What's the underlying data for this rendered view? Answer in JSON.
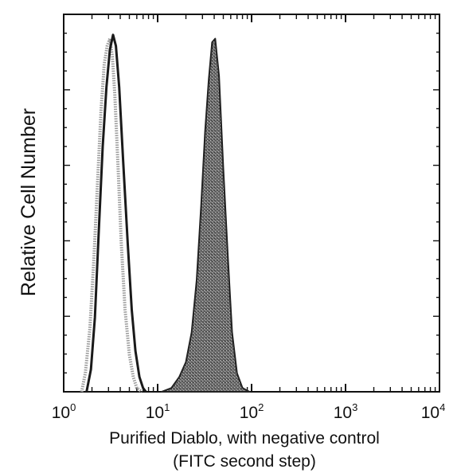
{
  "chart_data": {
    "type": "area",
    "title": "",
    "xlabel": "Purified Diablo, with negative control",
    "xlabel_line2": "(FITC second step)",
    "ylabel": "Relative Cell Number",
    "xscale": "log",
    "xlim": [
      1,
      10000
    ],
    "ylim": [
      0,
      1.0
    ],
    "grid": false,
    "x_ticks": [
      {
        "base": "10",
        "exp": "0",
        "value": 1
      },
      {
        "base": "10",
        "exp": "1",
        "value": 10
      },
      {
        "base": "10",
        "exp": "2",
        "value": 100
      },
      {
        "base": "10",
        "exp": "3",
        "value": 1000
      },
      {
        "base": "10",
        "exp": "4",
        "value": 10000
      }
    ],
    "series": [
      {
        "style": "dotted-outline",
        "color": "#9a9a9a",
        "x": [
          1.55,
          1.7,
          1.9,
          2.1,
          2.3,
          2.5,
          2.7,
          2.9,
          3.1,
          3.3,
          3.5,
          3.8,
          4.1,
          4.5,
          5.0,
          5.5,
          6.0,
          6.8
        ],
        "y": [
          0.0,
          0.05,
          0.17,
          0.36,
          0.57,
          0.76,
          0.88,
          0.93,
          0.95,
          0.9,
          0.8,
          0.6,
          0.4,
          0.22,
          0.1,
          0.04,
          0.01,
          0.0
        ]
      },
      {
        "style": "dark-outline",
        "color": "#1a1a1a",
        "x": [
          1.75,
          1.95,
          2.15,
          2.35,
          2.6,
          2.85,
          3.1,
          3.35,
          3.6,
          3.9,
          4.3,
          4.8,
          5.3,
          5.8,
          6.4,
          7.0,
          7.5
        ],
        "y": [
          0.0,
          0.06,
          0.2,
          0.42,
          0.66,
          0.82,
          0.92,
          0.96,
          0.93,
          0.82,
          0.62,
          0.4,
          0.22,
          0.11,
          0.04,
          0.01,
          0.0
        ]
      },
      {
        "style": "filled",
        "color": "#4a4a4a",
        "x": [
          11,
          14,
          17,
          20,
          23,
          26,
          29,
          32,
          35,
          38,
          41,
          45,
          50,
          56,
          62,
          70,
          80,
          95
        ],
        "y": [
          0.0,
          0.01,
          0.04,
          0.08,
          0.16,
          0.3,
          0.5,
          0.7,
          0.84,
          0.94,
          0.95,
          0.85,
          0.6,
          0.36,
          0.16,
          0.05,
          0.01,
          0.0
        ]
      }
    ]
  }
}
